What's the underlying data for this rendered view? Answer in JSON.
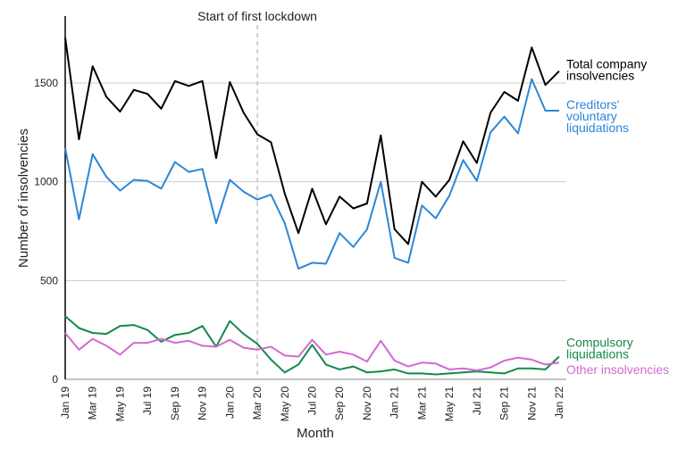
{
  "chart_data": {
    "type": "line",
    "title": "",
    "xlabel": "Month",
    "ylabel": "Number of insolvencies",
    "ylim": [
      0,
      1850
    ],
    "yticks": [
      0,
      500,
      1000,
      1500
    ],
    "grid": "horizontal",
    "annotation": {
      "text": "Start of first lockdown",
      "x": "Mar 20"
    },
    "x": [
      "Jan 19",
      "Feb 19",
      "Mar 19",
      "Apr 19",
      "May 19",
      "Jun 19",
      "Jul 19",
      "Aug 19",
      "Sep 19",
      "Oct 19",
      "Nov 19",
      "Dec 19",
      "Jan 20",
      "Feb 20",
      "Mar 20",
      "Apr 20",
      "May 20",
      "Jun 20",
      "Jul 20",
      "Aug 20",
      "Sep 20",
      "Oct 20",
      "Nov 20",
      "Dec 20",
      "Jan 21",
      "Feb 21",
      "Mar 21",
      "Apr 21",
      "May 21",
      "Jun 21",
      "Jul 21",
      "Aug 21",
      "Sep 21",
      "Oct 21",
      "Nov 21",
      "Dec 21",
      "Jan 22"
    ],
    "xtick_labels": [
      "Jan 19",
      "Mar 19",
      "May 19",
      "Jul 19",
      "Sep 19",
      "Nov 19",
      "Jan 20",
      "Mar 20",
      "May 20",
      "Jul 20",
      "Sep 20",
      "Nov 20",
      "Jan 21",
      "Mar 21",
      "May 21",
      "Jul 21",
      "Sep 21",
      "Nov 21",
      "Jan 22"
    ],
    "series": [
      {
        "name": "Total company insolvencies",
        "label_lines": [
          "Total company",
          "insolvencies"
        ],
        "color": "#000000",
        "values": [
          1730,
          1215,
          1585,
          1430,
          1355,
          1465,
          1445,
          1370,
          1510,
          1485,
          1510,
          1120,
          1505,
          1350,
          1240,
          1200,
          940,
          740,
          965,
          785,
          925,
          865,
          890,
          1235,
          760,
          685,
          1000,
          925,
          1010,
          1205,
          1095,
          1350,
          1455,
          1410,
          1680,
          1490,
          1560
        ]
      },
      {
        "name": "Creditors' voluntary liquidations",
        "label_lines": [
          "Creditors'",
          "voluntary",
          "liquidations"
        ],
        "color": "#2a87d8",
        "values": [
          1170,
          810,
          1140,
          1025,
          955,
          1010,
          1005,
          965,
          1100,
          1050,
          1065,
          790,
          1010,
          950,
          910,
          935,
          790,
          560,
          590,
          585,
          740,
          670,
          760,
          1000,
          615,
          590,
          880,
          815,
          930,
          1110,
          1005,
          1250,
          1330,
          1245,
          1520,
          1360,
          1360
        ]
      },
      {
        "name": "Compulsory liquidations",
        "label_lines": [
          "Compulsory",
          "liquidations"
        ],
        "color": "#15894a",
        "values": [
          320,
          260,
          235,
          230,
          270,
          275,
          250,
          190,
          225,
          235,
          270,
          165,
          295,
          230,
          180,
          100,
          35,
          75,
          175,
          75,
          50,
          65,
          35,
          40,
          50,
          30,
          30,
          25,
          30,
          35,
          40,
          35,
          30,
          55,
          55,
          50,
          115
        ]
      },
      {
        "name": "Other insolvencies",
        "label_lines": [
          "Other insolvencies"
        ],
        "color": "#d26ad0",
        "values": [
          235,
          150,
          205,
          170,
          125,
          185,
          185,
          205,
          185,
          195,
          170,
          165,
          200,
          160,
          150,
          165,
          120,
          115,
          200,
          125,
          140,
          125,
          90,
          195,
          95,
          65,
          85,
          80,
          50,
          55,
          45,
          60,
          95,
          110,
          100,
          75,
          85
        ]
      }
    ]
  }
}
